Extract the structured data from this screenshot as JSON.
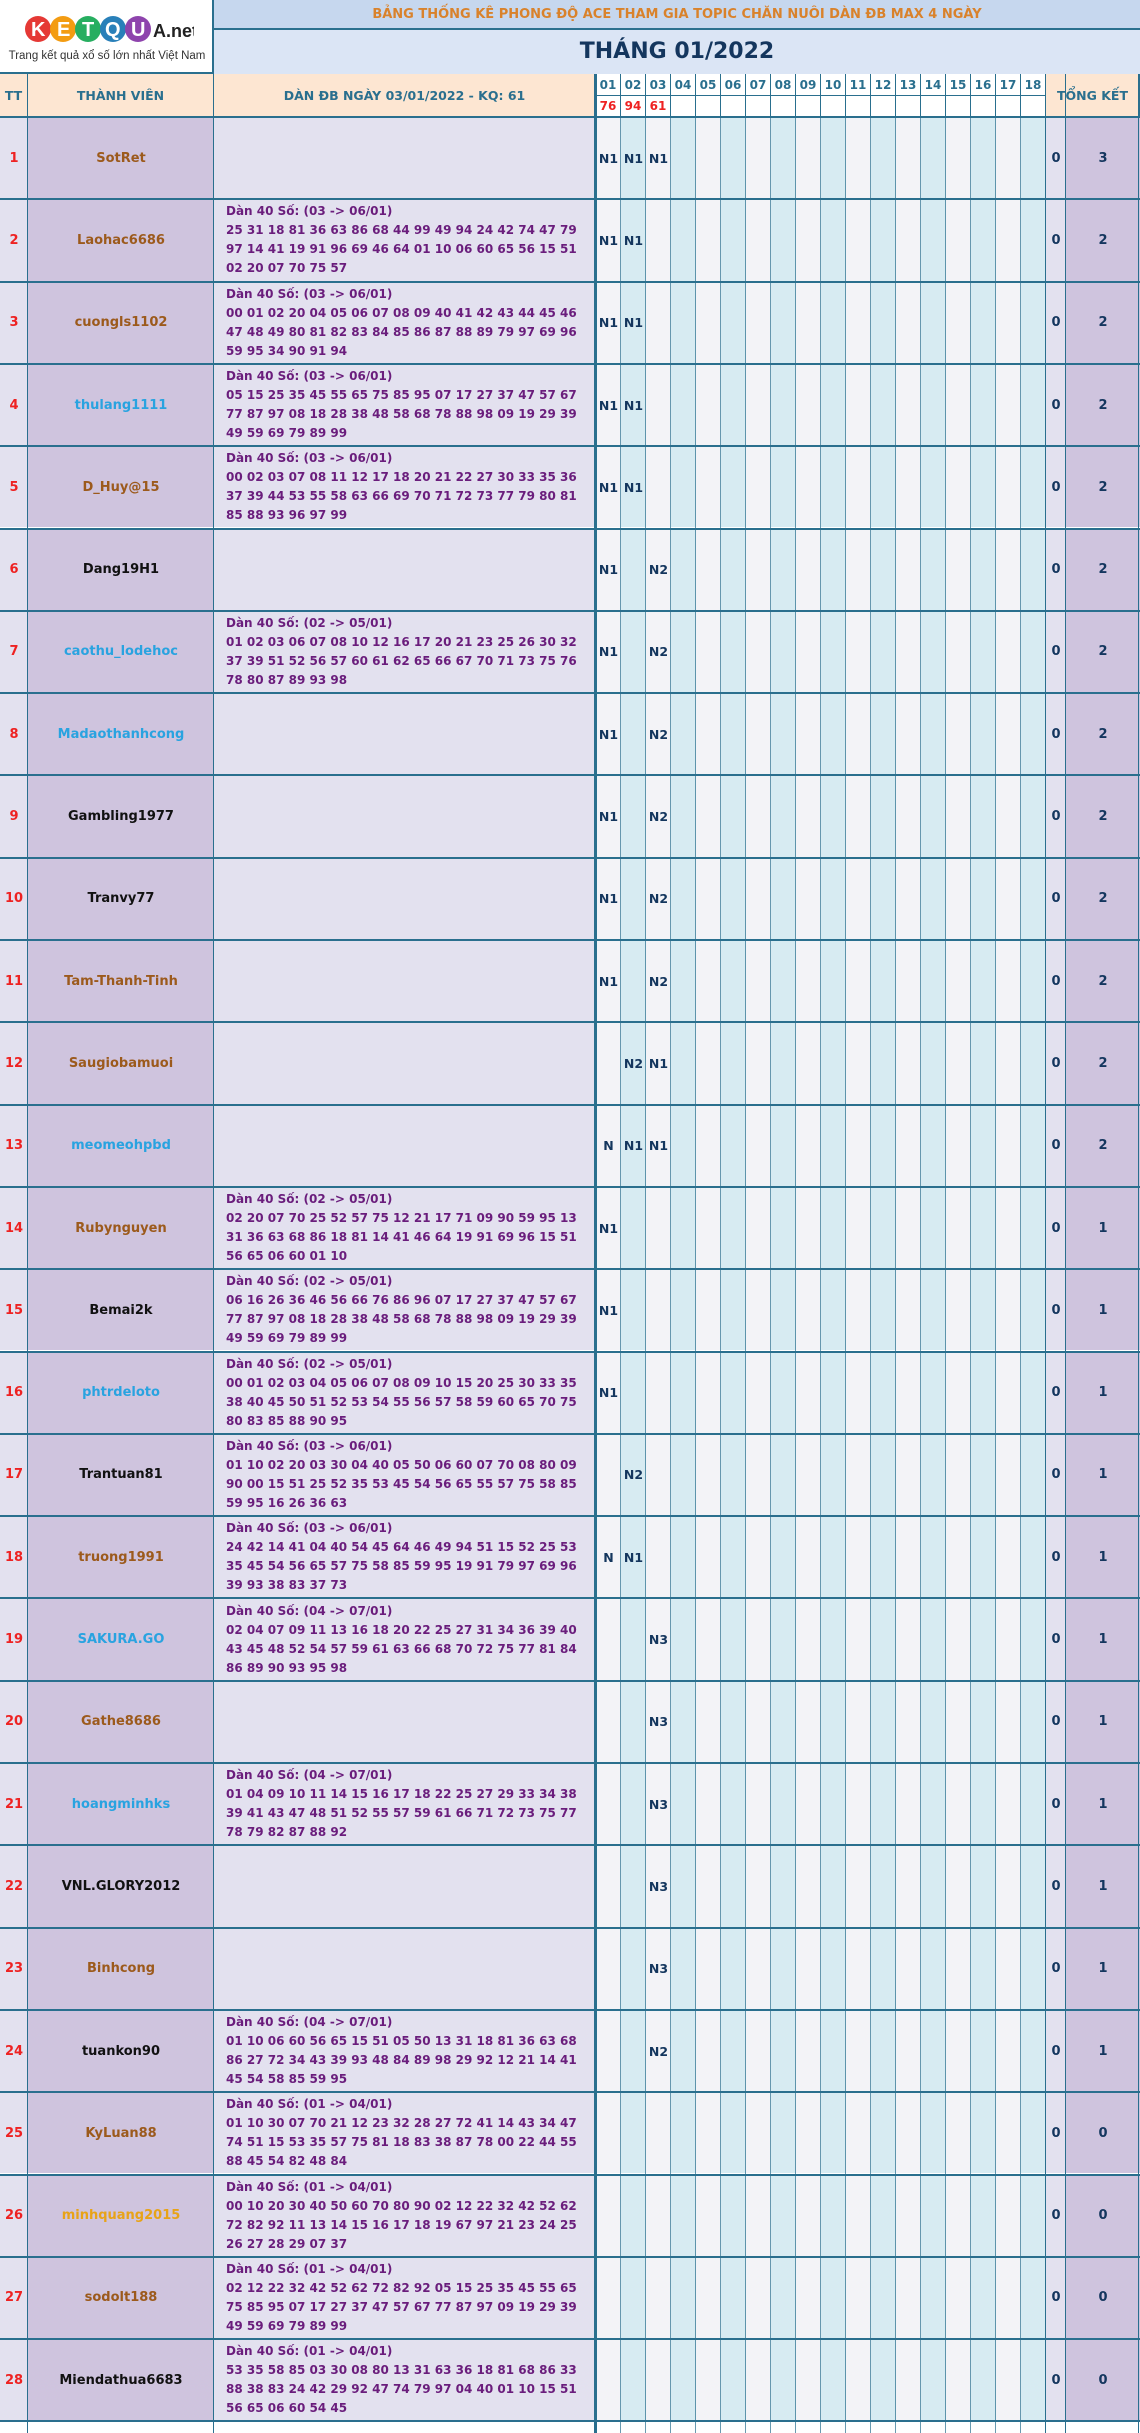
{
  "logo": {
    "wordmark": "KETQUA.net",
    "tagline": "Trang kết quả xổ số lớn nhất Việt Nam"
  },
  "banner": "BẢNG THỐNG KÊ PHONG ĐỘ ACE THAM GIA TOPIC CHĂN NUÔI DÀN ĐB MAX 4 NGÀY",
  "month": "THÁNG 01/2022",
  "headers": {
    "tt": "TT",
    "member": "THÀNH VIÊN",
    "dan": "DÀN ĐB NGÀY 03/01/2022 - KQ: 61",
    "total": "TỔNG KẾT"
  },
  "days": [
    "01",
    "02",
    "03",
    "04",
    "05",
    "06",
    "07",
    "08",
    "09",
    "10",
    "11",
    "12",
    "13",
    "14",
    "15",
    "16",
    "17",
    "18"
  ],
  "results": [
    "76",
    "94",
    "61"
  ],
  "colors": {
    "border": "#2a6f8e",
    "orange": "#9c5a1c",
    "blue": "#29a3e0",
    "black": "#111111",
    "gold": "#e8a317"
  },
  "rows": [
    {
      "tt": "1",
      "name": "SotRet",
      "color": "orange",
      "dan_title": "",
      "dan_nums": "",
      "d": [
        "N1",
        "N1",
        "N1"
      ],
      "score": "0",
      "total": "3"
    },
    {
      "tt": "2",
      "name": "Laohac6686",
      "color": "orange",
      "dan_title": "Dàn 40 Số: (03 -> 06/01)",
      "dan_nums": "25 31 18 81 36 63 86 68 44 99 49 94 24 42 74 47 79 97 14 41 19 91 96 69 46 64 01 10 06 60 65 56 15 51 02 20 07 70 75 57",
      "d": [
        "N1",
        "N1",
        ""
      ],
      "score": "0",
      "total": "2"
    },
    {
      "tt": "3",
      "name": "cuongls1102",
      "color": "orange",
      "dan_title": "Dàn 40 Số: (03 -> 06/01)",
      "dan_nums": "00 01 02 20 04 05 06 07 08 09 40 41 42 43 44 45 46 47 48 49 80 81 82 83 84 85 86 87 88 89 79 97 69 96 59 95 34 90 91 94",
      "d": [
        "N1",
        "N1",
        ""
      ],
      "score": "0",
      "total": "2"
    },
    {
      "tt": "4",
      "name": "thulang1111",
      "color": "blue",
      "dan_title": "Dàn 40 Số: (03 -> 06/01)",
      "dan_nums": "05 15 25 35 45 55 65 75 85 95 07 17 27 37 47 57 67 77 87 97 08 18 28 38 48 58 68 78 88 98 09 19 29 39 49 59 69 79 89 99",
      "d": [
        "N1",
        "N1",
        ""
      ],
      "score": "0",
      "total": "2"
    },
    {
      "tt": "5",
      "name": "D_Huy@15",
      "color": "orange",
      "dan_title": "Dàn 40 Số: (03 -> 06/01)",
      "dan_nums": "00 02 03 07 08 11 12 17 18 20 21 22 27 30 33 35 36 37 39 44 53 55 58 63 66 69 70 71 72 73 77 79 80 81 85 88 93 96 97 99",
      "d": [
        "N1",
        "N1",
        ""
      ],
      "score": "0",
      "total": "2"
    },
    {
      "tt": "6",
      "name": "Dang19H1",
      "color": "black",
      "dan_title": "",
      "dan_nums": "",
      "d": [
        "N1",
        "",
        "N2"
      ],
      "score": "0",
      "total": "2"
    },
    {
      "tt": "7",
      "name": "caothu_lodehoc",
      "color": "blue",
      "dan_title": "Dàn 40 Số: (02 -> 05/01)",
      "dan_nums": "01 02 03 06 07 08 10 12 16 17 20 21 23 25 26 30 32 37 39 51 52 56 57 60 61 62 65 66 67 70 71 73 75 76 78 80 87 89 93 98",
      "d": [
        "N1",
        "",
        "N2"
      ],
      "score": "0",
      "total": "2"
    },
    {
      "tt": "8",
      "name": "Madaothanhcong",
      "color": "blue",
      "dan_title": "",
      "dan_nums": "",
      "d": [
        "N1",
        "",
        "N2"
      ],
      "score": "0",
      "total": "2"
    },
    {
      "tt": "9",
      "name": "Gambling1977",
      "color": "black",
      "dan_title": "",
      "dan_nums": "",
      "d": [
        "N1",
        "",
        "N2"
      ],
      "score": "0",
      "total": "2"
    },
    {
      "tt": "10",
      "name": "Tranvy77",
      "color": "black",
      "dan_title": "",
      "dan_nums": "",
      "d": [
        "N1",
        "",
        "N2"
      ],
      "score": "0",
      "total": "2"
    },
    {
      "tt": "11",
      "name": "Tam-Thanh-Tinh",
      "color": "orange",
      "dan_title": "",
      "dan_nums": "",
      "d": [
        "N1",
        "",
        "N2"
      ],
      "score": "0",
      "total": "2"
    },
    {
      "tt": "12",
      "name": "Saugiobamuoi",
      "color": "orange",
      "dan_title": "",
      "dan_nums": "",
      "d": [
        "",
        "N2",
        "N1"
      ],
      "score": "0",
      "total": "2"
    },
    {
      "tt": "13",
      "name": "meomeohpbd",
      "color": "blue",
      "dan_title": "",
      "dan_nums": "",
      "d": [
        "N",
        "N1",
        "N1"
      ],
      "score": "0",
      "total": "2"
    },
    {
      "tt": "14",
      "name": "Rubynguyen",
      "color": "orange",
      "dan_title": "Dàn 40 Số: (02 -> 05/01)",
      "dan_nums": "02 20 07 70 25 52 57 75 12 21 17 71 09 90 59 95 13 31 36 63 68 86 18 81 14 41 46 64 19 91 69 96 15 51 56 65 06 60 01 10",
      "d": [
        "N1",
        "",
        ""
      ],
      "score": "0",
      "total": "1"
    },
    {
      "tt": "15",
      "name": "Bemai2k",
      "color": "black",
      "dan_title": "Dàn 40 Số: (02 -> 05/01)",
      "dan_nums": "06 16 26 36 46 56 66 76 86 96 07 17 27 37 47 57 67 77 87 97 08 18 28 38 48 58 68 78 88 98 09 19 29 39 49 59 69 79 89 99",
      "d": [
        "N1",
        "",
        ""
      ],
      "score": "0",
      "total": "1"
    },
    {
      "tt": "16",
      "name": "phtrdeloto",
      "color": "blue",
      "dan_title": "Dàn 40 Số: (02 -> 05/01)",
      "dan_nums": "00 01 02 03 04 05 06 07 08 09 10 15 20 25 30 33 35 38 40 45 50 51 52 53 54 55 56 57 58 59 60 65 70 75 80 83 85 88 90 95",
      "d": [
        "N1",
        "",
        ""
      ],
      "score": "0",
      "total": "1"
    },
    {
      "tt": "17",
      "name": "Trantuan81",
      "color": "black",
      "dan_title": "Dàn 40 Số: (03 -> 06/01)",
      "dan_nums": "01 10 02 20 03 30 04 40 05 50 06 60 07 70 08 80 09 90 00 15 51 25 52 35 53 45 54 56 65 55 57 75 58 85 59 95 16 26 36 63",
      "d": [
        "",
        "N2",
        ""
      ],
      "score": "0",
      "total": "1"
    },
    {
      "tt": "18",
      "name": "truong1991",
      "color": "orange",
      "dan_title": "Dàn 40 Số: (03 -> 06/01)",
      "dan_nums": "24 42 14 41 04 40 54 45 64 46 49 94 51 15 52 25 53 35 45 54 56 65 57 75 58 85 59 95 19 91 79 97 69 96 39 93 38 83 37 73",
      "d": [
        "N",
        "N1",
        ""
      ],
      "score": "0",
      "total": "1"
    },
    {
      "tt": "19",
      "name": "SAKURA.GO",
      "color": "blue",
      "dan_title": "Dàn 40 Số: (04 -> 07/01)",
      "dan_nums": "02 04 07 09 11 13 16 18 20 22 25 27 31 34 36 39 40 43 45 48 52 54 57 59 61 63 66 68 70 72 75 77 81 84 86 89 90 93 95 98",
      "d": [
        "",
        "",
        "N3"
      ],
      "score": "0",
      "total": "1"
    },
    {
      "tt": "20",
      "name": "Gathe8686",
      "color": "orange",
      "dan_title": "",
      "dan_nums": "",
      "d": [
        "",
        "",
        "N3"
      ],
      "score": "0",
      "total": "1"
    },
    {
      "tt": "21",
      "name": "hoangminhks",
      "color": "blue",
      "dan_title": "Dàn 40 Số: (04 -> 07/01)",
      "dan_nums": "01 04 09 10 11 14 15 16 17 18 22 25 27 29 33 34 38 39 41 43 47 48 51 52 55 57 59 61 66 71 72 73 75 77 78 79 82 87 88 92",
      "d": [
        "",
        "",
        "N3"
      ],
      "score": "0",
      "total": "1"
    },
    {
      "tt": "22",
      "name": "VNL.GLORY2012",
      "color": "black",
      "dan_title": "",
      "dan_nums": "",
      "d": [
        "",
        "",
        "N3"
      ],
      "score": "0",
      "total": "1"
    },
    {
      "tt": "23",
      "name": "Binhcong",
      "color": "orange",
      "dan_title": "",
      "dan_nums": "",
      "d": [
        "",
        "",
        "N3"
      ],
      "score": "0",
      "total": "1"
    },
    {
      "tt": "24",
      "name": "tuankon90",
      "color": "black",
      "dan_title": "Dàn 40 Số: (04 -> 07/01)",
      "dan_nums": "01 10 06 60 56 65 15 51 05 50 13 31 18 81 36 63 68 86 27 72 34 43 39 93 48 84 89 98 29 92 12 21 14 41 45 54 58 85 59 95",
      "d": [
        "",
        "",
        "N2"
      ],
      "score": "0",
      "total": "1"
    },
    {
      "tt": "25",
      "name": "KyLuan88",
      "color": "orange",
      "dan_title": "Dàn 40 Số: (01 -> 04/01)",
      "dan_nums": "01 10 30 07 70 21 12 23 32 28 27 72 41 14 43 34 47 74 51 15 53 35 57 75 81 18 83 38 87 78 00 22 44 55 88 45 54 82 48 84",
      "d": [
        "",
        "",
        ""
      ],
      "score": "0",
      "total": "0"
    },
    {
      "tt": "26",
      "name": "minhquang2015",
      "color": "gold",
      "dan_title": "Dàn 40 Số: (01 -> 04/01)",
      "dan_nums": "00 10 20 30 40 50 60 70 80 90 02 12 22 32 42 52 62 72 82 92 11 13 14 15 16 17 18 19 67 97 21 23 24 25 26 27 28 29 07 37",
      "d": [
        "",
        "",
        ""
      ],
      "score": "0",
      "total": "0"
    },
    {
      "tt": "27",
      "name": "sodolt188",
      "color": "orange",
      "dan_title": "Dàn 40 Số: (01 -> 04/01)",
      "dan_nums": "02 12 22 32 42 52 62 72 82 92 05 15 25 35 45 55 65 75 85 95 07 17 27 37 47 57 67 77 87 97 09 19 29 39 49 59 69 79 89 99",
      "d": [
        "",
        "",
        ""
      ],
      "score": "0",
      "total": "0"
    },
    {
      "tt": "28",
      "name": "Miendathua6683",
      "color": "black",
      "dan_title": "Dàn 40 Số: (01 -> 04/01)",
      "dan_nums": "53 35 58 85 03 30 08 80 13 31 63 36 18 81 68 86 33 88 38 83 24 42 29 92 47 74 79 97 04 40 01 10 15 51 56 65 06 60 54 45",
      "d": [
        "",
        "",
        ""
      ],
      "score": "0",
      "total": "0"
    }
  ]
}
